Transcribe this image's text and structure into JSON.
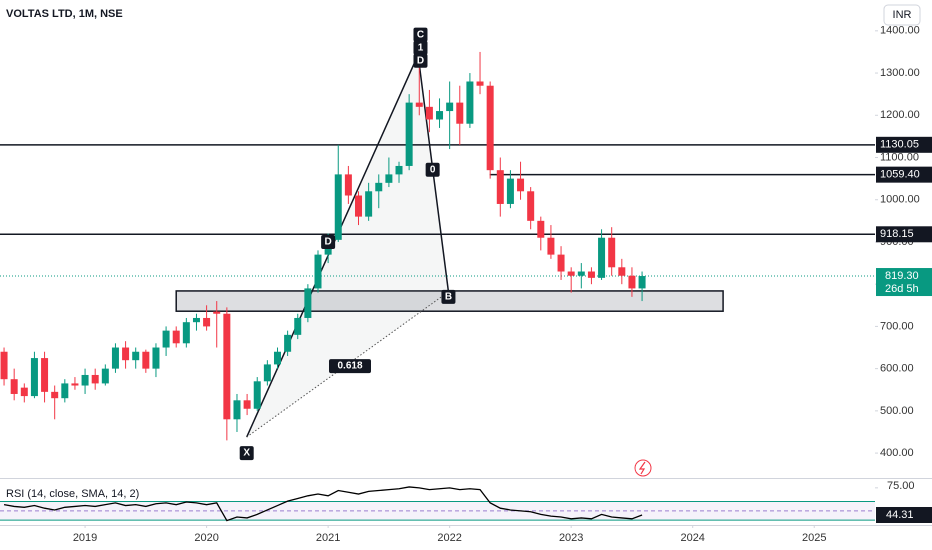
{
  "header": {
    "symbol": "VOLTAS LTD, 1M, NSE",
    "currency": "INR"
  },
  "chart_data": [
    {
      "type": "candlestick",
      "x": [
        "2018-05",
        "2018-06",
        "2018-07",
        "2018-08",
        "2018-09",
        "2018-10",
        "2018-11",
        "2018-12",
        "2019-01",
        "2019-02",
        "2019-03",
        "2019-04",
        "2019-05",
        "2019-06",
        "2019-07",
        "2019-08",
        "2019-09",
        "2019-10",
        "2019-11",
        "2019-12",
        "2020-01",
        "2020-02",
        "2020-03",
        "2020-04",
        "2020-05",
        "2020-06",
        "2020-07",
        "2020-08",
        "2020-09",
        "2020-10",
        "2020-11",
        "2020-12",
        "2021-01",
        "2021-02",
        "2021-03",
        "2021-04",
        "2021-05",
        "2021-06",
        "2021-07",
        "2021-08",
        "2021-09",
        "2021-10",
        "2021-11",
        "2021-12",
        "2022-01",
        "2022-02",
        "2022-03",
        "2022-04",
        "2022-05",
        "2022-06",
        "2022-07",
        "2022-08",
        "2022-09",
        "2022-10",
        "2022-11",
        "2022-12",
        "2023-01",
        "2023-02",
        "2023-03",
        "2023-04",
        "2023-05",
        "2023-06",
        "2023-07",
        "2023-08"
      ],
      "open": [
        640,
        575,
        555,
        535,
        625,
        545,
        530,
        565,
        560,
        585,
        565,
        600,
        650,
        620,
        640,
        600,
        650,
        690,
        660,
        710,
        720,
        735,
        730,
        480,
        525,
        505,
        570,
        610,
        640,
        680,
        720,
        790,
        870,
        905,
        1060,
        1010,
        960,
        1020,
        1040,
        1060,
        1080,
        1230,
        1220,
        1190,
        1210,
        1230,
        1180,
        1280,
        1270,
        1070,
        990,
        1050,
        1020,
        950,
        910,
        870,
        830,
        820,
        830,
        815,
        910,
        840,
        820,
        790
      ],
      "high": [
        650,
        600,
        565,
        640,
        640,
        560,
        575,
        580,
        600,
        600,
        610,
        660,
        665,
        650,
        645,
        660,
        700,
        700,
        720,
        730,
        750,
        760,
        745,
        540,
        540,
        580,
        620,
        650,
        690,
        730,
        800,
        880,
        920,
        1130,
        1080,
        1020,
        1040,
        1060,
        1100,
        1090,
        1250,
        1350,
        1260,
        1240,
        1280,
        1270,
        1300,
        1350,
        1280,
        1100,
        1070,
        1090,
        1030,
        960,
        940,
        890,
        840,
        850,
        840,
        930,
        935,
        860,
        840,
        830
      ],
      "low": [
        560,
        525,
        520,
        530,
        520,
        480,
        520,
        550,
        540,
        550,
        560,
        590,
        600,
        600,
        590,
        580,
        630,
        650,
        650,
        690,
        690,
        650,
        430,
        450,
        490,
        500,
        560,
        600,
        630,
        670,
        710,
        780,
        850,
        900,
        990,
        940,
        950,
        980,
        1030,
        1040,
        1070,
        1200,
        1160,
        1170,
        1120,
        1130,
        1170,
        1250,
        1050,
        960,
        980,
        1000,
        930,
        880,
        860,
        810,
        780,
        790,
        800,
        810,
        820,
        800,
        770,
        760
      ],
      "close": [
        575,
        540,
        535,
        625,
        545,
        530,
        565,
        560,
        585,
        565,
        600,
        650,
        620,
        640,
        600,
        650,
        690,
        660,
        710,
        720,
        700,
        730,
        480,
        525,
        505,
        570,
        610,
        640,
        680,
        720,
        790,
        870,
        905,
        1060,
        1010,
        960,
        1020,
        1040,
        1060,
        1080,
        1230,
        1220,
        1190,
        1210,
        1230,
        1180,
        1280,
        1270,
        1070,
        990,
        1050,
        1020,
        950,
        910,
        870,
        830,
        820,
        830,
        815,
        910,
        840,
        820,
        790,
        819.3
      ],
      "up_color": "#089981",
      "down_color": "#f23645",
      "xlim": [
        2018.3,
        2025.5
      ],
      "ylim": [
        341,
        1473
      ],
      "yticks": [
        {
          "value": 400,
          "label": "400.00"
        },
        {
          "value": 500,
          "label": "500.00"
        },
        {
          "value": 600,
          "label": "600.00"
        },
        {
          "value": 700,
          "label": "700.00"
        },
        {
          "value": 800,
          "label": "800.00"
        },
        {
          "value": 900,
          "label": "900.00"
        },
        {
          "value": 1000,
          "label": "1000.00"
        },
        {
          "value": 1100,
          "label": "1100.00"
        },
        {
          "value": 1200,
          "label": "1200.00"
        },
        {
          "value": 1300,
          "label": "1300.00"
        },
        {
          "value": 1400,
          "label": "1400.00"
        }
      ],
      "hlines": [
        {
          "value": 1130.05,
          "label": "1130.05",
          "from": 2018.3
        },
        {
          "value": 1059.4,
          "label": "1059.40",
          "from": 2022.33
        },
        {
          "value": 918.15,
          "label": "918.15",
          "from": 2018.3
        }
      ],
      "last_price": {
        "value": 819.3,
        "label": "819.30",
        "countdown": "26d 5h",
        "color": "#089981"
      },
      "zone": {
        "x": [
          2019.75,
          2024.25
        ],
        "y": [
          736,
          784
        ]
      },
      "pattern": {
        "x": [
          2020.33,
          2021.74,
          2021.99
        ],
        "y": [
          438,
          1343,
          782
        ]
      },
      "annotations": [
        {
          "text": "X",
          "x": 2020.33,
          "y": 400
        },
        {
          "text": "C",
          "x": 2021.76,
          "y": 1391
        },
        {
          "text": "1",
          "x": 2021.76,
          "y": 1360
        },
        {
          "text": "D",
          "x": 2021.76,
          "y": 1329
        },
        {
          "text": "0",
          "x": 2021.86,
          "y": 1071
        },
        {
          "text": "0.618",
          "x": 2021.18,
          "y": 606
        },
        {
          "text": "D",
          "x": 2021.0,
          "y": 900
        },
        {
          "text": "B",
          "x": 2021.99,
          "y": 770
        }
      ]
    },
    {
      "type": "line",
      "title": "RSI (14, close, SMA, 14, 2)",
      "x": [
        "2018-05",
        "2018-06",
        "2018-07",
        "2018-08",
        "2018-09",
        "2018-10",
        "2018-11",
        "2018-12",
        "2019-01",
        "2019-02",
        "2019-03",
        "2019-04",
        "2019-05",
        "2019-06",
        "2019-07",
        "2019-08",
        "2019-09",
        "2019-10",
        "2019-11",
        "2019-12",
        "2020-01",
        "2020-02",
        "2020-03",
        "2020-04",
        "2020-05",
        "2020-06",
        "2020-07",
        "2020-08",
        "2020-09",
        "2020-10",
        "2020-11",
        "2020-12",
        "2021-01",
        "2021-02",
        "2021-03",
        "2021-04",
        "2021-05",
        "2021-06",
        "2021-07",
        "2021-08",
        "2021-09",
        "2021-10",
        "2021-11",
        "2021-12",
        "2022-01",
        "2022-02",
        "2022-03",
        "2022-04",
        "2022-05",
        "2022-06",
        "2022-07",
        "2022-08",
        "2022-09",
        "2022-10",
        "2022-11",
        "2022-12",
        "2023-01",
        "2023-02",
        "2023-03",
        "2023-04",
        "2023-05",
        "2023-06",
        "2023-07",
        "2023-08"
      ],
      "series": [
        {
          "color": "#000000",
          "values": [
            56,
            54,
            53,
            55,
            52,
            50,
            53,
            54,
            55,
            54,
            56,
            58,
            55,
            56,
            54,
            57,
            58,
            56,
            59,
            58,
            56,
            58,
            38,
            42,
            41,
            45,
            50,
            55,
            60,
            63,
            66,
            68,
            66,
            72,
            70,
            68,
            71,
            72,
            73,
            74,
            76,
            75,
            73,
            74,
            75,
            73,
            74,
            73,
            58,
            52,
            50,
            49,
            48,
            45,
            43,
            42,
            40,
            41,
            40,
            45,
            42,
            41,
            40,
            44.31
          ]
        }
      ],
      "xlim": [
        2018.3,
        2025.5
      ],
      "ylim": [
        33,
        85
      ],
      "yticks": [
        {
          "value": 75,
          "label": "75.00"
        }
      ],
      "bands": [
        59.5,
        38.5
      ],
      "band_color": "#089981",
      "xticks": [
        2019,
        2020,
        2021,
        2022,
        2023,
        2024,
        2025
      ]
    }
  ]
}
